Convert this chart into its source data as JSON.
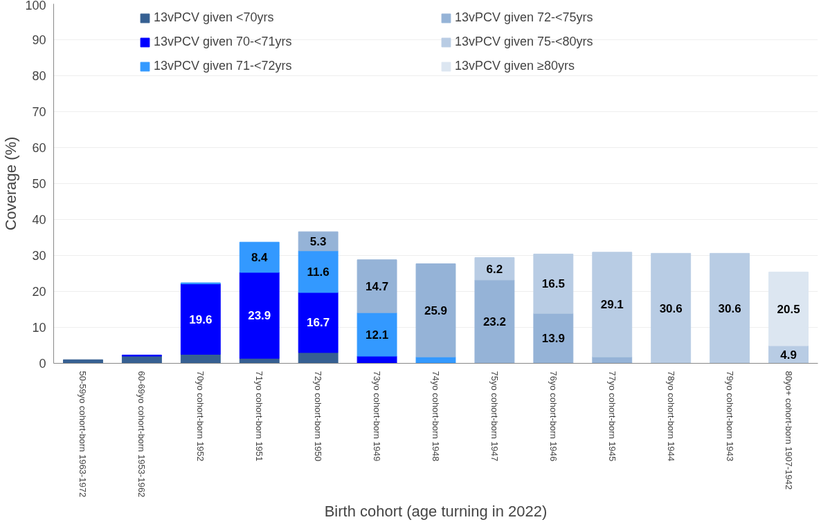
{
  "chart_data": {
    "type": "bar",
    "stacked": true,
    "xlabel": "Birth cohort (age turning in 2022)",
    "ylabel": "Coverage (%)",
    "categories": [
      "50-59yo cohort-born 1963-1972",
      "60-69yo cohort-born 1953-1962",
      "70yo cohort-born 1952",
      "71yo cohort-born 1951",
      "72yo cohort-born 1950",
      "73yo cohort-born 1949",
      "74yo cohort-born 1948",
      "75yo cohort-born 1947",
      "76yo cohort-born 1946",
      "77yo cohort-born 1945",
      "78yo cohort-born 1944",
      "79yo cohort-born 1943",
      "80yo+ cohort-born 1907-1942"
    ],
    "series": [
      {
        "name": "13vPCV given <70yrs",
        "color": "#366092",
        "values": [
          1.0,
          2.0,
          2.5,
          1.4,
          3.0,
          null,
          null,
          null,
          null,
          null,
          null,
          null,
          null
        ],
        "value_labels": [
          null,
          null,
          null,
          null,
          null,
          null,
          null,
          null,
          null,
          null,
          null,
          null,
          null
        ]
      },
      {
        "name": "13vPCV given 70-<71yrs",
        "color": "#0000ff",
        "values": [
          null,
          0.3,
          19.6,
          23.9,
          16.7,
          2.0,
          null,
          null,
          null,
          null,
          null,
          null,
          null
        ],
        "value_labels": [
          null,
          null,
          "19.6",
          "23.9",
          "16.7",
          null,
          null,
          null,
          null,
          null,
          null,
          null,
          null
        ]
      },
      {
        "name": "13vPCV given 71-<72yrs",
        "color": "#3399ff",
        "values": [
          null,
          null,
          0.3,
          8.4,
          11.6,
          12.1,
          1.8,
          null,
          null,
          null,
          null,
          null,
          null
        ],
        "value_labels": [
          null,
          null,
          null,
          "8.4",
          "11.6",
          "12.1",
          null,
          null,
          null,
          null,
          null,
          null,
          null
        ]
      },
      {
        "name": "13vPCV given 72-<75yrs",
        "color": "#95b3d7",
        "values": [
          null,
          null,
          null,
          null,
          5.3,
          14.7,
          25.9,
          23.2,
          13.9,
          1.8,
          null,
          null,
          null
        ],
        "value_labels": [
          null,
          null,
          null,
          null,
          "5.3",
          "14.7",
          "25.9",
          "23.2",
          "13.9",
          null,
          null,
          null,
          null
        ]
      },
      {
        "name": "13vPCV given 75-<80yrs",
        "color": "#b8cce4",
        "values": [
          null,
          null,
          null,
          null,
          null,
          null,
          null,
          6.2,
          16.5,
          29.1,
          30.6,
          30.6,
          4.9
        ],
        "value_labels": [
          null,
          null,
          null,
          null,
          null,
          null,
          null,
          "6.2",
          "16.5",
          "29.1",
          "30.6",
          "30.6",
          "4.9"
        ]
      },
      {
        "name": "13vPCV given ≥80yrs",
        "color": "#dce6f1",
        "values": [
          null,
          null,
          null,
          null,
          null,
          null,
          null,
          null,
          null,
          null,
          null,
          null,
          20.5
        ],
        "value_labels": [
          null,
          null,
          null,
          null,
          null,
          null,
          null,
          null,
          null,
          null,
          null,
          null,
          "20.5"
        ]
      }
    ],
    "ylim": [
      0,
      100
    ],
    "yticks": [
      0,
      10,
      20,
      30,
      40,
      50,
      60,
      70,
      80,
      90,
      100
    ],
    "grid": "y",
    "legend": "top"
  }
}
